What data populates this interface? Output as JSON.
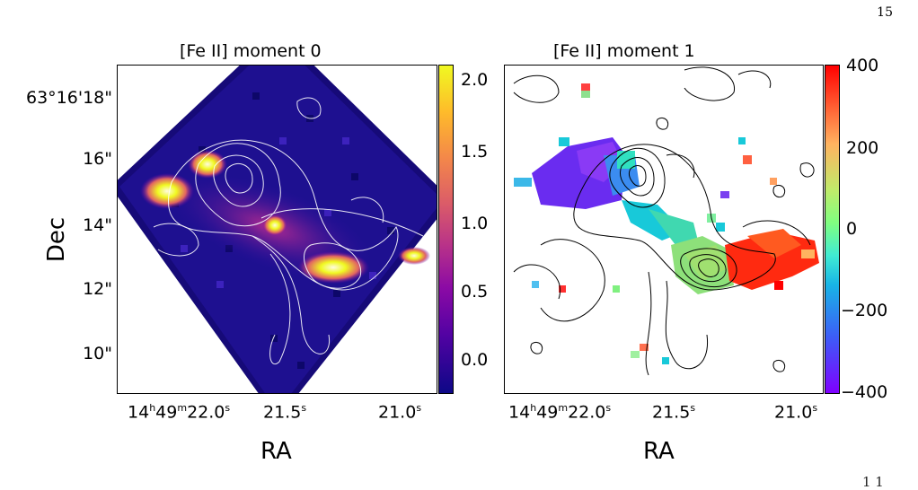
{
  "page_number": "15",
  "caption_fragment": "1   1",
  "left_panel": {
    "title": "[Fe II] moment 0",
    "xlabel": "RA",
    "ylabel": "Dec",
    "yticks": [
      "63°16'18\"",
      "16\"",
      "14\"",
      "12\"",
      "10\""
    ],
    "xticks": [
      {
        "h": "14",
        "m": "49",
        "s": "22.0",
        "hsup": "h",
        "msup": "m",
        "ssup": "s"
      },
      {
        "s": "21.5",
        "ssup": "s"
      },
      {
        "s": "21.0",
        "ssup": "s"
      }
    ],
    "colorbar_ticks": [
      "2.0",
      "1.5",
      "1.0",
      "0.5",
      "0.0"
    ],
    "colorbar_range": [
      -0.3,
      2.15
    ],
    "colormap": "plasma"
  },
  "right_panel": {
    "title": "[Fe II] moment 1",
    "xlabel": "RA",
    "xticks": [
      {
        "h": "14",
        "m": "49",
        "s": "22.0",
        "hsup": "h",
        "msup": "m",
        "ssup": "s"
      },
      {
        "s": "21.5",
        "ssup": "s"
      },
      {
        "s": "21.0",
        "ssup": "s"
      }
    ],
    "colorbar_ticks": [
      "400",
      "200",
      "0",
      "−200",
      "−400"
    ],
    "colorbar_range": [
      -400,
      400
    ],
    "colormap": "rainbow"
  },
  "colors": {
    "plasma_stops": [
      "#0d0887",
      "#6a00a8",
      "#b12a90",
      "#e16462",
      "#fca636",
      "#f0f921"
    ],
    "rainbow_stops": [
      "#7f00ff",
      "#3b6cf5",
      "#18c9d9",
      "#80ff80",
      "#ffb360",
      "#ff0000"
    ],
    "contour_light": "#ffffff",
    "contour_dark": "#000000"
  }
}
